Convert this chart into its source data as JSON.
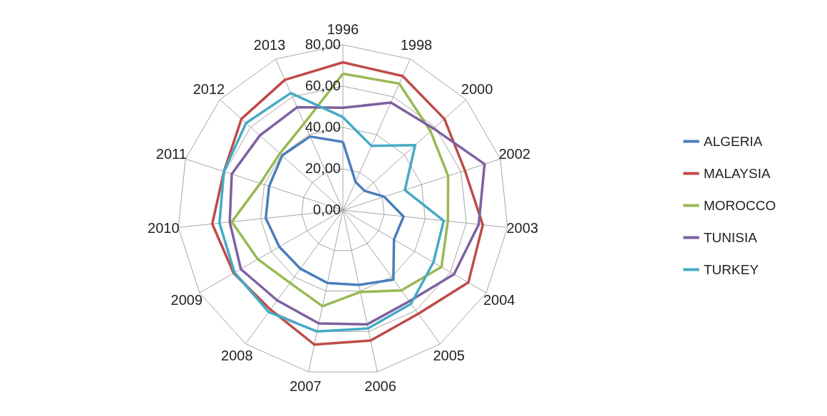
{
  "chart_data": {
    "type": "radar",
    "categories": [
      "1996",
      "1998",
      "2000",
      "2002",
      "2003",
      "2004",
      "2005",
      "2006",
      "2007",
      "2008",
      "2009",
      "2010",
      "2011",
      "2012",
      "2013"
    ],
    "ylim": [
      0,
      80
    ],
    "yticks": [
      {
        "value": 0,
        "label": "0,00"
      },
      {
        "value": 20,
        "label": "20,00"
      },
      {
        "value": 40,
        "label": "40,00"
      },
      {
        "value": 60,
        "label": "60,00"
      },
      {
        "value": 80,
        "label": "80,00"
      }
    ],
    "grid": true,
    "legend": "right",
    "series": [
      {
        "name": "ALGERIA",
        "color": "#4a7ebb",
        "values": [
          33,
          15,
          14,
          21,
          29.5,
          28.5,
          41.5,
          37,
          36,
          35,
          35.5,
          37.5,
          37.5,
          39.5,
          39
        ]
      },
      {
        "name": "MALAYSIA",
        "color": "#be4b48",
        "values": [
          71.5,
          71,
          66,
          62,
          68,
          70,
          62,
          64.5,
          66.5,
          59.5,
          61,
          63.5,
          60.5,
          66,
          69
        ]
      },
      {
        "name": "MOROCCO",
        "color": "#98b954",
        "values": [
          66,
          67,
          57,
          53.5,
          51,
          55,
          48,
          40.5,
          47.5,
          43.5,
          47.5,
          54,
          42,
          41,
          46
        ]
      },
      {
        "name": "TUNISIA",
        "color": "#7d60a0",
        "values": [
          49.5,
          57,
          59,
          72,
          66,
          62,
          54.5,
          56.5,
          56,
          54,
          57,
          55,
          56.5,
          54,
          54.5
        ]
      },
      {
        "name": "TURKEY",
        "color": "#46aac5",
        "values": [
          45,
          34,
          47,
          31.5,
          49,
          50.5,
          56,
          58.5,
          60,
          61,
          60.5,
          60,
          60.5,
          63,
          62
        ]
      }
    ]
  }
}
